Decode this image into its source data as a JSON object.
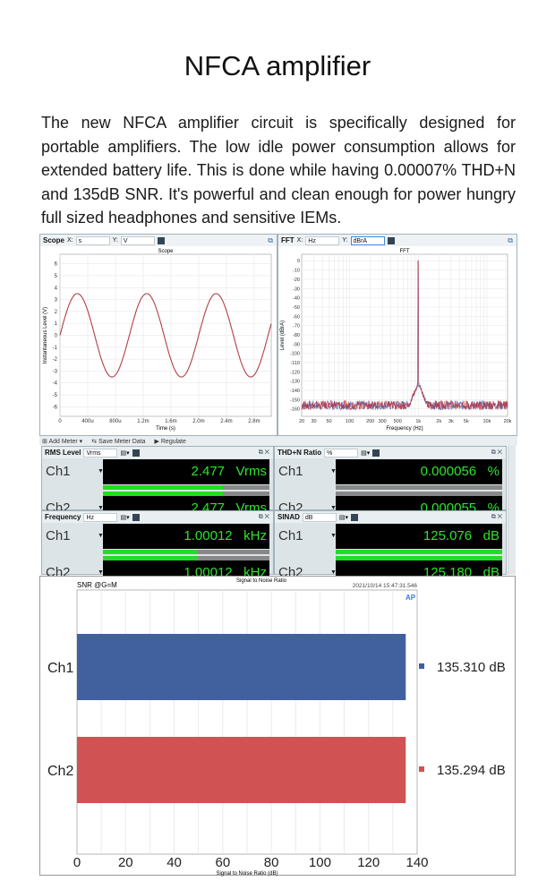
{
  "title": "NFCA amplifier",
  "paragraph": "The new NFCA amplifier circuit is specifically designed for portable amplifiers.   The low idle power consumption allows for extended battery life. This is done while having 0.00007% THD+N and 135dB SNR. It's powerful and clean enough for power hungry full sized headphones and sensitive IEMs.",
  "scope": {
    "panel": "Scope",
    "x_unit": "s",
    "y_unit": "V",
    "title": "Scope",
    "xlabel": "Time (s)",
    "ylabel": "Instantaneous Level (V)",
    "xticks": [
      "0",
      "400u",
      "800u",
      "1.2m",
      "1.6m",
      "2.0m",
      "2.4m",
      "2.8m"
    ],
    "yticks": [
      "6",
      "5",
      "4",
      "3",
      "2",
      "1",
      "0",
      "-1",
      "-2",
      "-3",
      "-4",
      "-5",
      "-6"
    ],
    "signal": {
      "frequency_hz": 1000,
      "amplitude_v": 3.5,
      "x_range_s": [
        0,
        0.003
      ],
      "y_range": [
        -6.8,
        6.8
      ]
    },
    "color": "#b0404a"
  },
  "fft": {
    "panel": "FFT",
    "x_unit": "Hz",
    "y_unit": "dBrA",
    "title": "FFT",
    "xlabel": "Frequency (Hz)",
    "ylabel": "Level (dBrA)",
    "xticks": [
      "20",
      "30",
      "50",
      "100",
      "200",
      "300",
      "500",
      "1k",
      "2k",
      "3k",
      "5k",
      "10k",
      "20k"
    ],
    "yticks": [
      "0",
      "-10",
      "-20",
      "-30",
      "-40",
      "-50",
      "-60",
      "-70",
      "-80",
      "-90",
      "-100",
      "-110",
      "-120",
      "-130",
      "-140",
      "-150",
      "-160"
    ],
    "peak": {
      "frequency_hz": 1000,
      "level_db": 0
    },
    "noise_floor_db": -157,
    "x_range": [
      20,
      20000
    ],
    "y_range": [
      -168,
      7
    ],
    "series_colors": [
      "#3a4fa0",
      "#c0303a"
    ]
  },
  "toolbar": {
    "add_meter": "Add Meter",
    "save_meter_data": "Save Meter Data",
    "regulate": "Regulate"
  },
  "meters": [
    {
      "name": "RMS Level",
      "unit_sel": "Vrms",
      "ch": [
        {
          "label": "Ch1",
          "value": "2.477",
          "unit": "Vrms",
          "fill": 0.72
        },
        {
          "label": "Ch2",
          "value": "2.477",
          "unit": "Vrms",
          "fill": 0.72
        }
      ]
    },
    {
      "name": "THD+N Ratio",
      "unit_sel": "%",
      "ch": [
        {
          "label": "Ch1",
          "value": "0.000056",
          "unit": "%",
          "fill": 0
        },
        {
          "label": "Ch2",
          "value": "0.000055",
          "unit": "%",
          "fill": 0
        }
      ]
    },
    {
      "name": "Frequency",
      "unit_sel": "Hz",
      "ch": [
        {
          "label": "Ch1",
          "value": "1.00012",
          "unit": "kHz",
          "fill": 0.57
        },
        {
          "label": "Ch2",
          "value": "1.00012",
          "unit": "kHz",
          "fill": 0.57
        }
      ]
    },
    {
      "name": "SINAD",
      "unit_sel": "dB",
      "ch": [
        {
          "label": "Ch1",
          "value": "125.076",
          "unit": "dB",
          "fill": 1
        },
        {
          "label": "Ch2",
          "value": "125.180",
          "unit": "dB",
          "fill": 1
        }
      ]
    }
  ],
  "snr": {
    "title": "Signal to Noise Ratio",
    "label": "SNR @G=M",
    "timestamp": "2021/10/14 15:47:31.546",
    "logo": "AP"
  },
  "chart_data": {
    "type": "bar",
    "orientation": "horizontal",
    "title": "Signal to Noise Ratio",
    "categories": [
      "Ch1",
      "Ch2"
    ],
    "values": [
      135.31,
      135.294
    ],
    "value_labels": [
      "135.310 dB",
      "135.294 dB"
    ],
    "colors": [
      "#41609e",
      "#d05252"
    ],
    "xlabel": "Signal to Noise Ratio (dB)",
    "xlim": [
      0,
      140
    ],
    "xticks": [
      "0",
      "20",
      "40",
      "60",
      "80",
      "100",
      "120",
      "140"
    ],
    "grid": true
  }
}
